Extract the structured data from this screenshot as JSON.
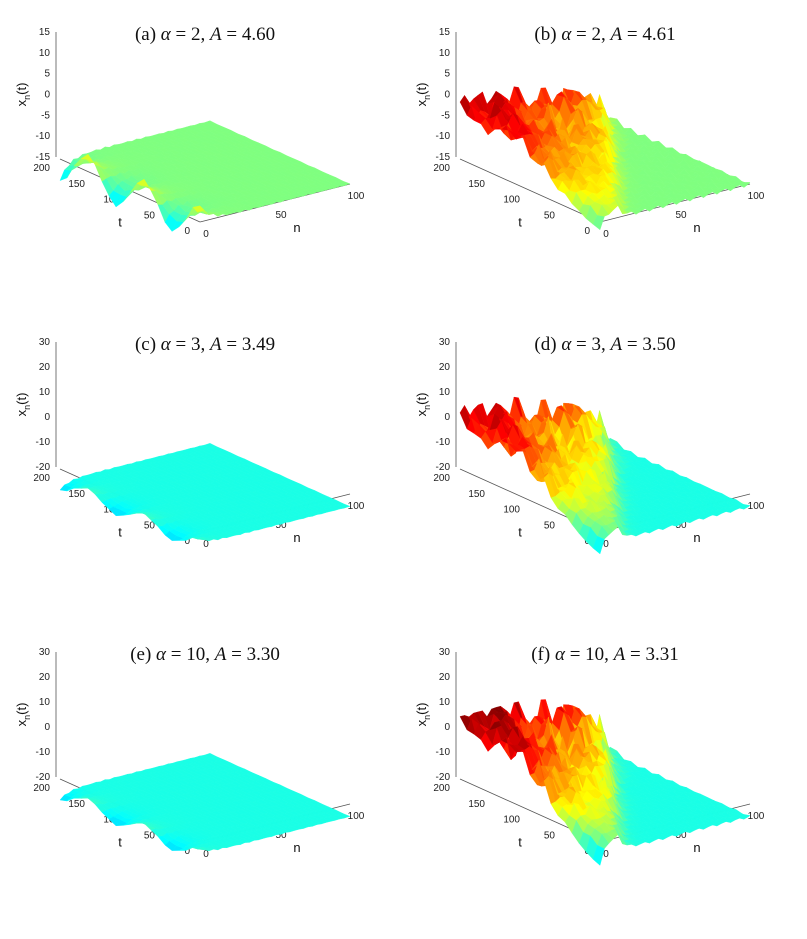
{
  "chart_data": [
    {
      "type": "surface3d",
      "panel_label": "(a)",
      "alpha": "2",
      "A": "4.60",
      "xlabel": "n",
      "ylabel": "t",
      "zlabel": "x",
      "x_ticks": [
        "0",
        "50",
        "100"
      ],
      "y_ticks": [
        "0",
        "50",
        "100",
        "150",
        "200"
      ],
      "z_ticks": [
        "-15",
        "-10",
        "-5",
        "0",
        "5",
        "10",
        "15"
      ],
      "xlim": [
        0,
        100
      ],
      "ylim": [
        0,
        200
      ],
      "zlim": [
        -15,
        15
      ],
      "behavior": "localized",
      "peak": 5,
      "colormap": "jet"
    },
    {
      "type": "surface3d",
      "panel_label": "(b)",
      "alpha": "2",
      "A": "4.61",
      "xlabel": "n",
      "ylabel": "t",
      "zlabel": "x",
      "x_ticks": [
        "0",
        "50",
        "100"
      ],
      "y_ticks": [
        "0",
        "50",
        "100",
        "150",
        "200"
      ],
      "z_ticks": [
        "-15",
        "-10",
        "-5",
        "0",
        "5",
        "10",
        "15"
      ],
      "xlim": [
        0,
        100
      ],
      "ylim": [
        0,
        200
      ],
      "zlim": [
        -15,
        15
      ],
      "behavior": "spreading",
      "peak": 15,
      "colormap": "jet"
    },
    {
      "type": "surface3d",
      "panel_label": "(c)",
      "alpha": "3",
      "A": "3.49",
      "xlabel": "n",
      "ylabel": "t",
      "zlabel": "x",
      "x_ticks": [
        "0",
        "50",
        "100"
      ],
      "y_ticks": [
        "0",
        "50",
        "100",
        "150",
        "200"
      ],
      "z_ticks": [
        "-20",
        "-10",
        "0",
        "10",
        "20",
        "30"
      ],
      "xlim": [
        0,
        100
      ],
      "ylim": [
        0,
        200
      ],
      "zlim": [
        -20,
        30
      ],
      "behavior": "localized",
      "peak": 3,
      "colormap": "jet"
    },
    {
      "type": "surface3d",
      "panel_label": "(d)",
      "alpha": "3",
      "A": "3.50",
      "xlabel": "n",
      "ylabel": "t",
      "zlabel": "x",
      "x_ticks": [
        "0",
        "50",
        "100"
      ],
      "y_ticks": [
        "0",
        "50",
        "100",
        "150",
        "200"
      ],
      "z_ticks": [
        "-20",
        "-10",
        "0",
        "10",
        "20",
        "30"
      ],
      "xlim": [
        0,
        100
      ],
      "ylim": [
        0,
        200
      ],
      "zlim": [
        -20,
        30
      ],
      "behavior": "spreading",
      "peak": 30,
      "colormap": "jet"
    },
    {
      "type": "surface3d",
      "panel_label": "(e)",
      "alpha": "10",
      "A": "3.30",
      "xlabel": "n",
      "ylabel": "t",
      "zlabel": "x",
      "x_ticks": [
        "0",
        "50",
        "100"
      ],
      "y_ticks": [
        "0",
        "50",
        "100",
        "150",
        "200"
      ],
      "z_ticks": [
        "-20",
        "-10",
        "0",
        "10",
        "20",
        "30"
      ],
      "xlim": [
        0,
        100
      ],
      "ylim": [
        0,
        200
      ],
      "zlim": [
        -20,
        30
      ],
      "behavior": "localized",
      "peak": 3,
      "colormap": "jet"
    },
    {
      "type": "surface3d",
      "panel_label": "(f)",
      "alpha": "10",
      "A": "3.31",
      "xlabel": "n",
      "ylabel": "t",
      "zlabel": "x",
      "x_ticks": [
        "0",
        "50",
        "100"
      ],
      "y_ticks": [
        "0",
        "50",
        "100",
        "150",
        "200"
      ],
      "z_ticks": [
        "-20",
        "-10",
        "0",
        "10",
        "20",
        "30"
      ],
      "xlim": [
        0,
        100
      ],
      "ylim": [
        0,
        200
      ],
      "zlim": [
        -20,
        30
      ],
      "behavior": "spreading",
      "peak": 35,
      "colormap": "jet"
    }
  ]
}
